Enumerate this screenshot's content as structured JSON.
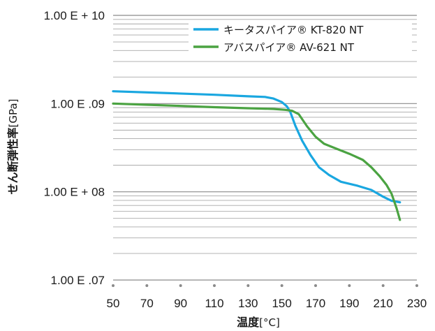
{
  "chart_data": {
    "type": "line",
    "xlabel_main": "温度",
    "xlabel_unit": "[°C]",
    "ylabel_main": "せん断弾性率",
    "ylabel_unit": "[GPa]",
    "x_ticks": [
      "50",
      "70",
      "90",
      "110",
      "130",
      "150",
      "170",
      "190",
      "210",
      "230"
    ],
    "xlim": [
      50,
      230
    ],
    "y_scale": "log",
    "ylim": [
      10000000,
      10000000000
    ],
    "y_ticks": [
      {
        "value": 10000000000,
        "label": "1.00 E + 10"
      },
      {
        "value": 1000000000,
        "label": "1.00 E .09"
      },
      {
        "value": 100000000,
        "label": "1.00 E + 08"
      },
      {
        "value": 10000000,
        "label": "1.00 E .07"
      }
    ],
    "grid": true,
    "legend_position": "top-right",
    "series": [
      {
        "name": "キータスパイア® KT-820 NT",
        "color": "#1aa7e0",
        "x": [
          50,
          80,
          110,
          130,
          140,
          145,
          150,
          153,
          155,
          158,
          162,
          167,
          172,
          178,
          185,
          195,
          203,
          210,
          215,
          220
        ],
        "y": [
          1380000000,
          1320000000,
          1260000000,
          1210000000,
          1190000000,
          1140000000,
          1040000000,
          930000000,
          800000000,
          560000000,
          380000000,
          260000000,
          190000000,
          155000000,
          130000000,
          117000000,
          105000000,
          88000000,
          79000000,
          76000000
        ]
      },
      {
        "name": "アバスパイア® AV-621 NT",
        "color": "#4ba342",
        "x": [
          50,
          70,
          90,
          110,
          130,
          145,
          152,
          156,
          160,
          165,
          170,
          175,
          182,
          190,
          198,
          203,
          208,
          212,
          215,
          218,
          220
        ],
        "y": [
          1000000000,
          970000000,
          940000000,
          910000000,
          885000000,
          870000000,
          850000000,
          830000000,
          760000000,
          550000000,
          420000000,
          350000000,
          310000000,
          270000000,
          230000000,
          190000000,
          150000000,
          120000000,
          95000000,
          65000000,
          48000000
        ]
      }
    ]
  }
}
